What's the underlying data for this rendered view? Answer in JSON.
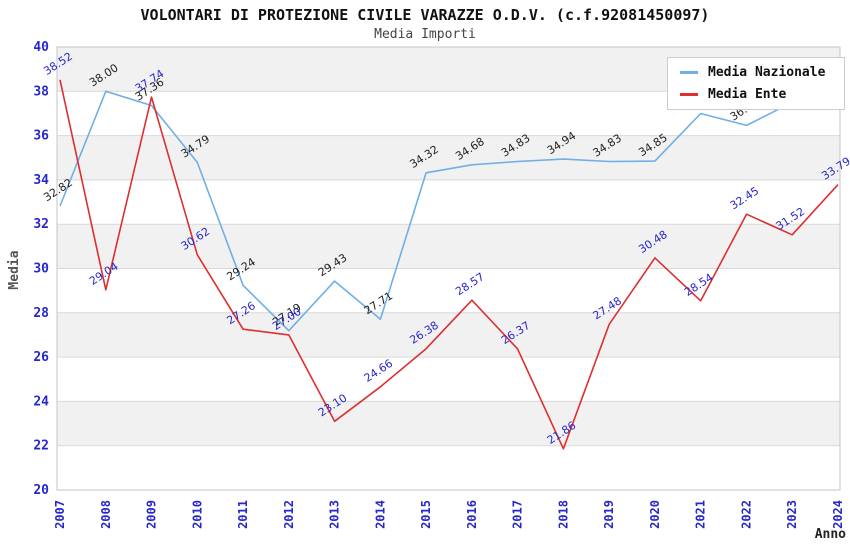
{
  "header": {
    "title": "VOLONTARI DI PROTEZIONE CIVILE VARAZZE O.D.V. (c.f.92081450097)",
    "subtitle": "Media Importi"
  },
  "legend": {
    "items": [
      {
        "label": "Media Nazionale",
        "color": "#6fafe8"
      },
      {
        "label": "Media Ente",
        "color": "#dd2f2f"
      }
    ]
  },
  "chart_data": {
    "type": "line",
    "title": "VOLONTARI DI PROTEZIONE CIVILE VARAZZE O.D.V. (c.f.92081450097)",
    "subtitle": "Media Importi",
    "xlabel": "Anno",
    "ylabel": "Media",
    "ylim": [
      20,
      40
    ],
    "ytick_step": 2,
    "grid": true,
    "alternating_bands": [
      [
        22,
        24
      ],
      [
        26,
        28
      ],
      [
        30,
        32
      ],
      [
        34,
        36
      ],
      [
        38,
        40
      ]
    ],
    "legend_position": "top-right",
    "categories": [
      "2007",
      "2008",
      "2009",
      "2010",
      "2011",
      "2012",
      "2013",
      "2014",
      "2015",
      "2016",
      "2017",
      "2018",
      "2019",
      "2020",
      "2021",
      "2022",
      "2023",
      "2024"
    ],
    "series": [
      {
        "name": "Media Nazionale",
        "color": "#6fafe8",
        "label_color": "#222222",
        "values": [
          32.82,
          38.0,
          37.36,
          34.79,
          29.24,
          27.19,
          29.43,
          27.71,
          34.32,
          34.68,
          34.83,
          34.94,
          34.83,
          34.85,
          37.0,
          36.46,
          37.5,
          null
        ],
        "labels": [
          "32.82",
          "38.00",
          "37.36",
          "34.79",
          "29.24",
          "27.19",
          "29.43",
          "27.71",
          "34.32",
          "34.68",
          "34.83",
          "34.94",
          "34.83",
          "34.85",
          "",
          "36.46",
          "",
          ""
        ],
        "note": "2021 and 2023 value labels are hidden behind the legend box; 2024 has no data"
      },
      {
        "name": "Media Ente",
        "color": "#dd2f2f",
        "label_color": "#2727cc",
        "values": [
          38.52,
          29.04,
          37.74,
          30.62,
          27.26,
          27.0,
          23.1,
          24.66,
          26.38,
          28.57,
          26.37,
          21.86,
          27.48,
          30.48,
          28.54,
          32.45,
          31.52,
          33.79
        ],
        "labels": [
          "38.52",
          "29.04",
          "37.74",
          "30.62",
          "27.26",
          "27.00",
          "23.10",
          "24.66",
          "26.38",
          "28.57",
          "26.37",
          "21.86",
          "27.48",
          "30.48",
          "28.54",
          "32.45",
          "31.52",
          "33.79"
        ]
      }
    ],
    "axis_colors": {
      "tick_label": "#2727cc",
      "axis_title": "#555555",
      "grid": "#d9d9d9",
      "band": "#f1f1f1",
      "border": "#c6c6c6"
    }
  }
}
